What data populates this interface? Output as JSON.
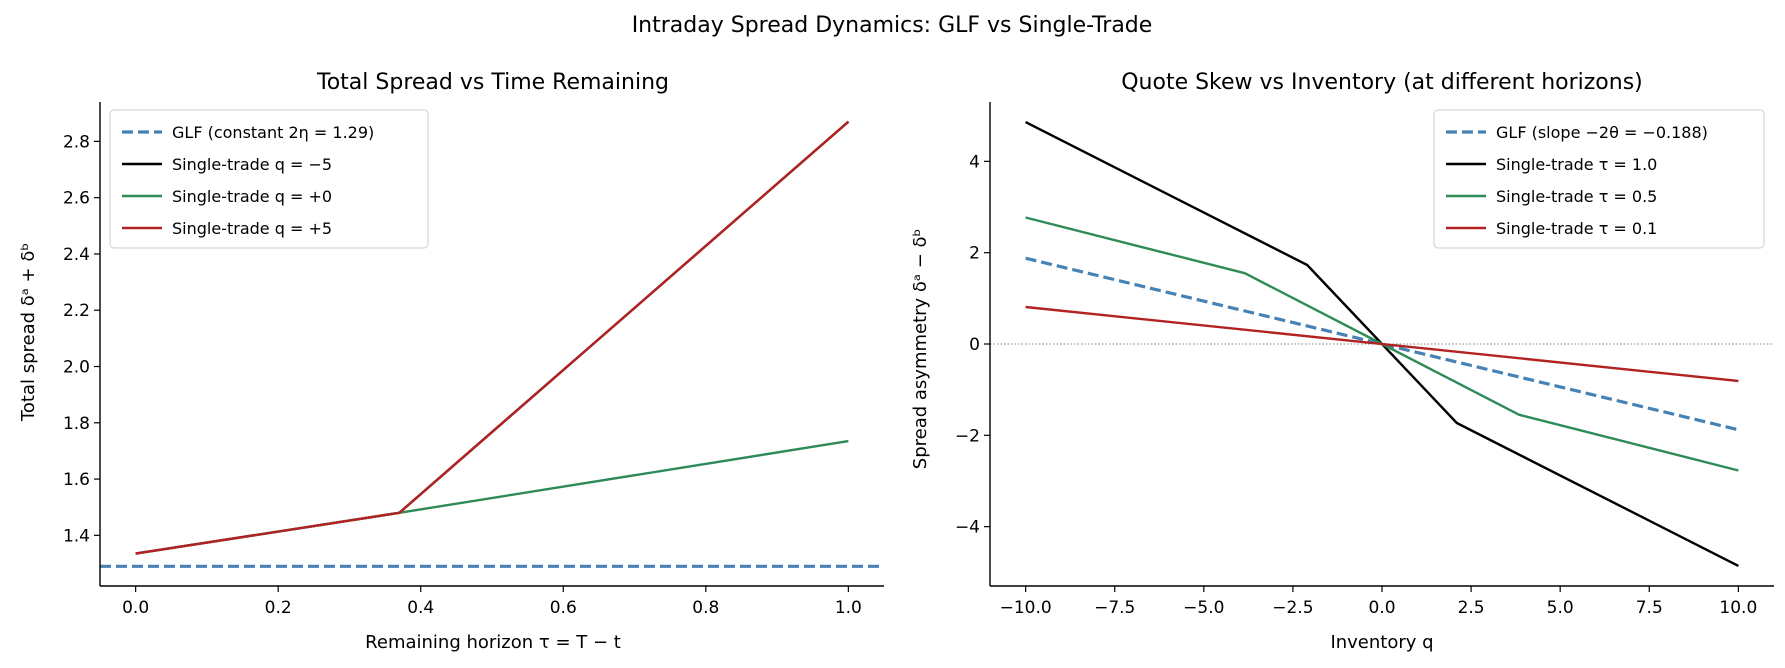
{
  "suptitle": "Intraday Spread Dynamics: GLF vs Single-Trade",
  "chart_data": [
    {
      "type": "line",
      "title": "Total Spread vs Time Remaining",
      "xlabel": "Remaining horizon τ = T − t",
      "ylabel": "Total spread δᵃ + δᵇ",
      "xlim": [
        -0.05,
        1.05
      ],
      "ylim": [
        1.22,
        2.94
      ],
      "xticks": [
        0.0,
        0.2,
        0.4,
        0.6,
        0.8,
        1.0
      ],
      "xtick_labels": [
        "0.0",
        "0.2",
        "0.4",
        "0.6",
        "0.8",
        "1.0"
      ],
      "yticks": [
        1.4,
        1.6,
        1.8,
        2.0,
        2.2,
        2.4,
        2.6,
        2.8
      ],
      "ytick_labels": [
        "1.4",
        "1.6",
        "1.8",
        "2.0",
        "2.2",
        "2.4",
        "2.6",
        "2.8"
      ],
      "grid": false,
      "legend_position": "top-left",
      "series": [
        {
          "name": "GLF  (constant 2η = 1.29)",
          "color": "#4682b4",
          "dash": true,
          "x": [
            -0.05,
            1.05
          ],
          "y": [
            1.29,
            1.29
          ]
        },
        {
          "name": "Single-trade  q = −5",
          "color": "#000000",
          "dash": false,
          "x": [
            0.0,
            0.37,
            1.0
          ],
          "y": [
            1.335,
            1.48,
            2.87
          ]
        },
        {
          "name": "Single-trade  q = +0",
          "color": "#2e8b57",
          "dash": false,
          "x": [
            0.0,
            0.37,
            1.0
          ],
          "y": [
            1.335,
            1.48,
            1.735
          ]
        },
        {
          "name": "Single-trade  q = +5",
          "color": "#b22222",
          "dash": false,
          "x": [
            0.0,
            0.37,
            1.0
          ],
          "y": [
            1.335,
            1.48,
            2.87
          ]
        }
      ]
    },
    {
      "type": "line",
      "title": "Quote Skew vs Inventory (at different horizons)",
      "xlabel": "Inventory q",
      "ylabel": "Spread asymmetry δᵃ − δᵇ",
      "xlim": [
        -11.0,
        11.0
      ],
      "ylim": [
        -5.3,
        5.3
      ],
      "xticks": [
        -10.0,
        -7.5,
        -5.0,
        -2.5,
        0.0,
        2.5,
        5.0,
        7.5,
        10.0
      ],
      "xtick_labels": [
        "−10.0",
        "−7.5",
        "−5.0",
        "−2.5",
        "0.0",
        "2.5",
        "5.0",
        "7.5",
        "10.0"
      ],
      "yticks": [
        -4,
        -2,
        0,
        2,
        4
      ],
      "ytick_labels": [
        "−4",
        "−2",
        "0",
        "2",
        "4"
      ],
      "grid": false,
      "zero_line": true,
      "legend_position": "top-right",
      "series": [
        {
          "name": "GLF  (slope −2θ = −0.188)",
          "color": "#4682b4",
          "dash": true,
          "x": [
            -10,
            10
          ],
          "y": [
            1.88,
            -1.88
          ]
        },
        {
          "name": "Single-trade  τ = 1.0",
          "color": "#000000",
          "dash": false,
          "x": [
            -10,
            -2.1,
            0,
            2.1,
            10
          ],
          "y": [
            4.86,
            1.73,
            0,
            -1.73,
            -4.86
          ]
        },
        {
          "name": "Single-trade  τ = 0.5",
          "color": "#2e8b57",
          "dash": false,
          "x": [
            -10,
            -3.85,
            0,
            3.85,
            10
          ],
          "y": [
            2.77,
            1.55,
            0,
            -1.55,
            -2.77
          ]
        },
        {
          "name": "Single-trade  τ = 0.1",
          "color": "#b22222",
          "dash": false,
          "x": [
            -10,
            10
          ],
          "y": [
            0.81,
            -0.81
          ]
        }
      ]
    }
  ]
}
